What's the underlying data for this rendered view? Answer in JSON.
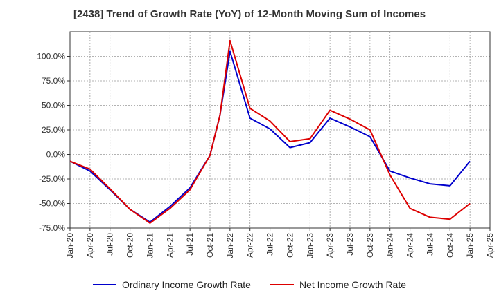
{
  "chart_data": {
    "type": "line",
    "title": "[2438]  Trend of Growth Rate (YoY) of 12-Month Moving Sum of Incomes",
    "x": [
      "Jan-20",
      "Apr-20",
      "Jul-20",
      "Oct-20",
      "Jan-21",
      "Apr-21",
      "Jul-21",
      "Oct-21",
      "Jan-22",
      "Apr-22",
      "Jul-22",
      "Oct-22",
      "Jan-23",
      "Apr-23",
      "Jul-23",
      "Oct-23",
      "Jan-24",
      "Apr-24",
      "Jul-24",
      "Oct-24",
      "Jan-25",
      "Apr-25"
    ],
    "ylim": [
      -75,
      125
    ],
    "yticks": [
      -75,
      -50,
      -25,
      0,
      25,
      50,
      75,
      100
    ],
    "ytick_labels": [
      "-75.0%",
      "-50.0%",
      "-25.0%",
      "0.0%",
      "25.0%",
      "50.0%",
      "75.0%",
      "100.0%"
    ],
    "grid": true,
    "legend_position": "bottom",
    "series": [
      {
        "name": "Ordinary Income Growth Rate",
        "color": "#0000cc",
        "values": [
          -7,
          -17,
          -36,
          -56,
          -69,
          -53,
          -34,
          -1,
          40,
          105,
          37,
          26,
          7,
          12,
          37,
          28,
          18,
          -17,
          -24,
          -30,
          -32,
          -7
        ]
      },
      {
        "name": "Net Income Growth Rate",
        "color": "#dd0000",
        "values": [
          -7,
          -15,
          -35,
          -56,
          -70,
          -55,
          -36,
          -1,
          40,
          116,
          47,
          34,
          13,
          16,
          45,
          36,
          25,
          -21,
          -55,
          -64,
          -66,
          -50
        ]
      }
    ],
    "x_indices_values": [
      0,
      1,
      2,
      3,
      4,
      5,
      6,
      7,
      7.5,
      8,
      9,
      10,
      11,
      12,
      13,
      14,
      15,
      16,
      17,
      18,
      19,
      20
    ]
  }
}
